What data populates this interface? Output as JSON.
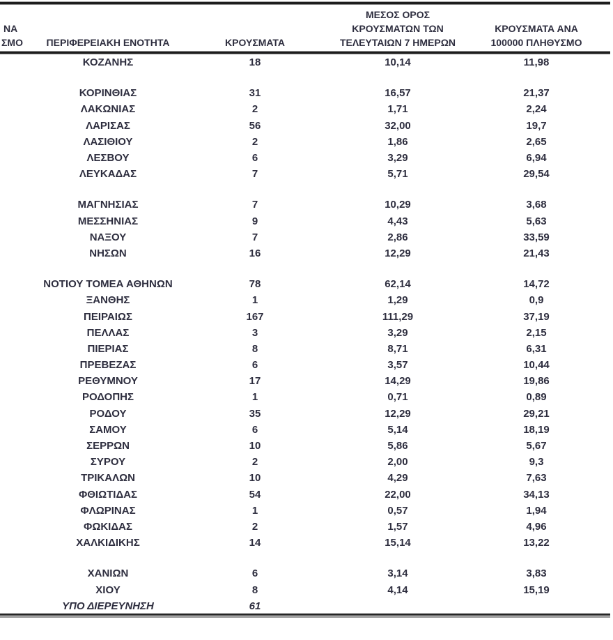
{
  "table": {
    "header": {
      "cut_fragment_line1": "ΝΑ",
      "cut_fragment_line2": "ΣΜΟ",
      "region": "ΠΕΡΙΦΕΡΕΙΑΚΗ ΕΝΟΤΗΤΑ",
      "cases": "ΚΡΟΥΣΜΑΤΑ",
      "avg7_lines": [
        "ΜΕΣΟΣ ΟΡΟΣ",
        "ΚΡΟΥΣΜΑΤΩΝ ΤΩΝ",
        "ΤΕΛΕΥΤΑΙΩΝ 7 ΗΜΕΡΩΝ"
      ],
      "per100k_lines": [
        "ΚΡΟΥΣΜΑΤΑ ΑΝΑ",
        "100000 ΠΛΗΘΥΣΜΟ"
      ]
    },
    "rows": [
      {
        "region": "ΚΟΖΑΝΗΣ",
        "cases": "18",
        "avg7": "10,14",
        "per100k": "11,98"
      },
      {
        "region": "ΚΟΡΙΝΘΙΑΣ",
        "cases": "31",
        "avg7": "16,57",
        "per100k": "21,37",
        "gap_before": true
      },
      {
        "region": "ΛΑΚΩΝΙΑΣ",
        "cases": "2",
        "avg7": "1,71",
        "per100k": "2,24"
      },
      {
        "region": "ΛΑΡΙΣΑΣ",
        "cases": "56",
        "avg7": "32,00",
        "per100k": "19,7"
      },
      {
        "region": "ΛΑΣΙΘΙΟΥ",
        "cases": "2",
        "avg7": "1,86",
        "per100k": "2,65"
      },
      {
        "region": "ΛΕΣΒΟΥ",
        "cases": "6",
        "avg7": "3,29",
        "per100k": "6,94"
      },
      {
        "region": "ΛΕΥΚΑΔΑΣ",
        "cases": "7",
        "avg7": "5,71",
        "per100k": "29,54"
      },
      {
        "region": "ΜΑΓΝΗΣΙΑΣ",
        "cases": "7",
        "avg7": "10,29",
        "per100k": "3,68",
        "gap_before": true
      },
      {
        "region": "ΜΕΣΣΗΝΙΑΣ",
        "cases": "9",
        "avg7": "4,43",
        "per100k": "5,63"
      },
      {
        "region": "ΝΑΞΟΥ",
        "cases": "7",
        "avg7": "2,86",
        "per100k": "33,59"
      },
      {
        "region": "ΝΗΣΩΝ",
        "cases": "16",
        "avg7": "12,29",
        "per100k": "21,43"
      },
      {
        "region": "ΝΟΤΙΟΥ ΤΟΜΕΑ ΑΘΗΝΩΝ",
        "cases": "78",
        "avg7": "62,14",
        "per100k": "14,72",
        "gap_before": true
      },
      {
        "region": "ΞΑΝΘΗΣ",
        "cases": "1",
        "avg7": "1,29",
        "per100k": "0,9"
      },
      {
        "region": "ΠΕΙΡΑΙΩΣ",
        "cases": "167",
        "avg7": "111,29",
        "per100k": "37,19"
      },
      {
        "region": "ΠΕΛΛΑΣ",
        "cases": "3",
        "avg7": "3,29",
        "per100k": "2,15"
      },
      {
        "region": "ΠΙΕΡΙΑΣ",
        "cases": "8",
        "avg7": "8,71",
        "per100k": "6,31"
      },
      {
        "region": "ΠΡΕΒΕΖΑΣ",
        "cases": "6",
        "avg7": "3,57",
        "per100k": "10,44"
      },
      {
        "region": "ΡΕΘΥΜΝΟΥ",
        "cases": "17",
        "avg7": "14,29",
        "per100k": "19,86"
      },
      {
        "region": "ΡΟΔΟΠΗΣ",
        "cases": "1",
        "avg7": "0,71",
        "per100k": "0,89"
      },
      {
        "region": "ΡΟΔΟΥ",
        "cases": "35",
        "avg7": "12,29",
        "per100k": "29,21"
      },
      {
        "region": "ΣΑΜΟΥ",
        "cases": "6",
        "avg7": "5,14",
        "per100k": "18,19"
      },
      {
        "region": "ΣΕΡΡΩΝ",
        "cases": "10",
        "avg7": "5,86",
        "per100k": "5,67"
      },
      {
        "region": "ΣΥΡΟΥ",
        "cases": "2",
        "avg7": "2,00",
        "per100k": "9,3"
      },
      {
        "region": "ΤΡΙΚΑΛΩΝ",
        "cases": "10",
        "avg7": "4,29",
        "per100k": "7,63"
      },
      {
        "region": "ΦΘΙΩΤΙΔΑΣ",
        "cases": "54",
        "avg7": "22,00",
        "per100k": "34,13"
      },
      {
        "region": "ΦΛΩΡΙΝΑΣ",
        "cases": "1",
        "avg7": "0,57",
        "per100k": "1,94"
      },
      {
        "region": "ΦΩΚΙΔΑΣ",
        "cases": "2",
        "avg7": "1,57",
        "per100k": "4,96"
      },
      {
        "region": "ΧΑΛΚΙΔΙΚΗΣ",
        "cases": "14",
        "avg7": "15,14",
        "per100k": "13,22"
      },
      {
        "region": "ΧΑΝΙΩΝ",
        "cases": "6",
        "avg7": "3,14",
        "per100k": "3,83",
        "gap_before": true
      },
      {
        "region": "ΧΙΟΥ",
        "cases": "8",
        "avg7": "4,14",
        "per100k": "15,19"
      },
      {
        "region": "ΥΠΟ ΔΙΕΡΕΥΝΗΣΗ",
        "cases": "61",
        "avg7": "",
        "per100k": "",
        "italic": true
      }
    ]
  },
  "colors": {
    "text": "#2e2e3f",
    "rule_dark": "#1d1d1d",
    "rule_gray": "#8f8f8f",
    "background": "#ffffff"
  }
}
